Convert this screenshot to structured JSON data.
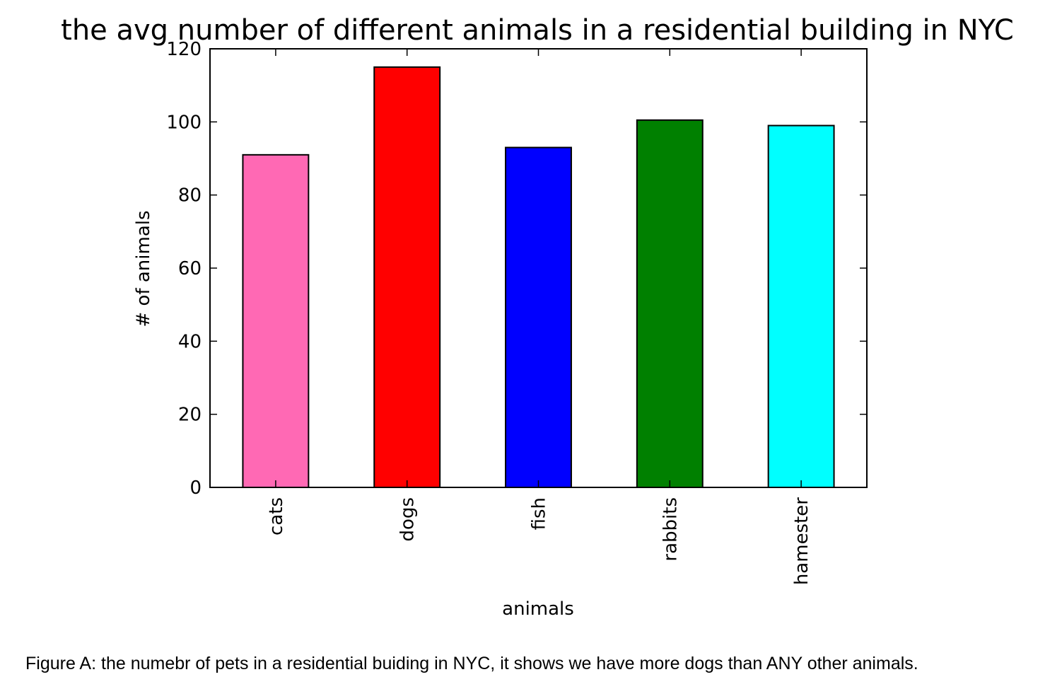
{
  "chart_data": {
    "type": "bar",
    "title": "the avg number of different animals in a residential building in NYC",
    "xlabel": "animals",
    "ylabel": "# of animals",
    "categories": [
      "cats",
      "dogs",
      "fish",
      "rabbits",
      "hamester"
    ],
    "values": [
      91,
      115,
      93,
      100.5,
      99
    ],
    "colors": [
      "#ff69b4",
      "#ff0000",
      "#0000ff",
      "#008000",
      "#00ffff"
    ],
    "ylim": [
      0,
      120
    ],
    "yticks": [
      0,
      20,
      40,
      60,
      80,
      100,
      120
    ],
    "grid": false,
    "legend": "none"
  },
  "caption": "Figure A: the numebr of pets in a residential buiding in NYC, it shows we have more dogs than ANY other animals."
}
